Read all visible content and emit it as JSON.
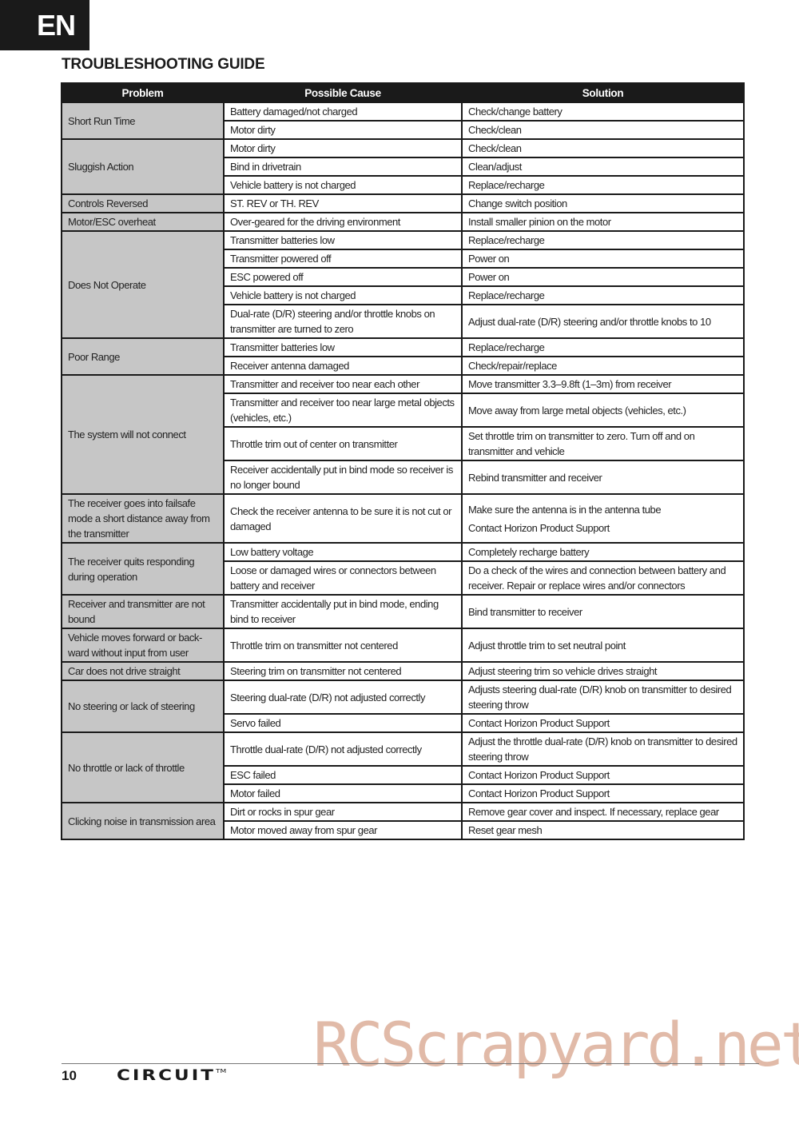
{
  "lang_tab": "EN",
  "title": "TROUBLESHOOTING GUIDE",
  "table": {
    "headers": [
      "Problem",
      "Possible Cause",
      "Solution"
    ],
    "groups": [
      {
        "problem": "Short Run Time",
        "rows": [
          {
            "cause": "Battery damaged/not charged",
            "solution": [
              "Check/change battery"
            ]
          },
          {
            "cause": "Motor dirty",
            "solution": [
              "Check/clean"
            ]
          }
        ]
      },
      {
        "problem": "Sluggish Action",
        "rows": [
          {
            "cause": "Motor dirty",
            "solution": [
              "Check/clean"
            ]
          },
          {
            "cause": "Bind in drivetrain",
            "solution": [
              "Clean/adjust"
            ]
          },
          {
            "cause": "Vehicle battery is not charged",
            "solution": [
              "Replace/recharge"
            ]
          }
        ]
      },
      {
        "problem": "Controls Reversed",
        "rows": [
          {
            "cause": "ST. REV or TH. REV",
            "solution": [
              "Change switch position"
            ]
          }
        ]
      },
      {
        "problem": "Motor/ESC overheat",
        "rows": [
          {
            "cause": "Over-geared for the driving environment",
            "solution": [
              "Install smaller pinion on the motor"
            ]
          }
        ]
      },
      {
        "problem": "Does Not Operate",
        "rows": [
          {
            "cause": "Transmitter batteries low",
            "solution": [
              "Replace/recharge"
            ]
          },
          {
            "cause": "Transmitter powered off",
            "solution": [
              "Power on"
            ]
          },
          {
            "cause": "ESC powered off",
            "solution": [
              "Power on"
            ]
          },
          {
            "cause": "Vehicle battery is not charged",
            "solution": [
              "Replace/recharge"
            ]
          },
          {
            "cause": "Dual-rate (D/R) steering and/or throttle knobs on transmitter are turned to zero",
            "solution": [
              "Adjust dual-rate (D/R) steering and/or throttle knobs to 10"
            ]
          }
        ]
      },
      {
        "problem": "Poor Range",
        "rows": [
          {
            "cause": "Transmitter batteries low",
            "solution": [
              "Replace/recharge"
            ]
          },
          {
            "cause": "Receiver antenna damaged",
            "solution": [
              "Check/repair/replace"
            ]
          }
        ]
      },
      {
        "problem": "The system will not connect",
        "rows": [
          {
            "cause": "Transmitter and receiver too near each other",
            "solution": [
              "Move transmitter 3.3–9.8ft (1–3m) from receiver"
            ]
          },
          {
            "cause": "Transmitter and receiver too near large metal objects (vehicles, etc.)",
            "solution": [
              "Move away from large metal objects (vehicles, etc.)"
            ]
          },
          {
            "cause": "Throttle trim out of center on transmitter",
            "solution": [
              "Set throttle trim on transmitter to zero. Turn off and on transmitter and vehicle"
            ]
          },
          {
            "cause": "Receiver accidentally put in bind mode so receiver is no longer bound",
            "solution": [
              "Rebind transmitter and receiver"
            ]
          }
        ]
      },
      {
        "problem": "The receiver goes into failsafe mode a short distance away from the transmitter",
        "rows": [
          {
            "cause": "Check the receiver antenna to be sure it is not cut or damaged",
            "solution": [
              "Make sure the antenna is in the antenna tube",
              "Contact Horizon Product Support"
            ]
          }
        ]
      },
      {
        "problem": "The receiver quits responding during operation",
        "rows": [
          {
            "cause": "Low battery voltage",
            "solution": [
              "Completely recharge battery"
            ]
          },
          {
            "cause": "Loose or damaged wires or connectors between battery and receiver",
            "solution": [
              "Do a check of the wires and connection between battery and receiver. Repair or replace wires and/or connectors"
            ]
          }
        ]
      },
      {
        "problem": "Receiver and transmitter are not bound",
        "rows": [
          {
            "cause": "Transmitter accidentally put in bind mode, ending bind to receiver",
            "solution": [
              "Bind transmitter to receiver"
            ]
          }
        ]
      },
      {
        "problem": "Vehicle moves forward or back-ward without input from user",
        "rows": [
          {
            "cause": "Throttle trim on transmitter not centered",
            "solution": [
              "Adjust throttle trim to set neutral point"
            ]
          }
        ]
      },
      {
        "problem": "Car does not drive straight",
        "rows": [
          {
            "cause": "Steering trim on transmitter not centered",
            "solution": [
              "Adjust steering trim so vehicle drives straight"
            ]
          }
        ]
      },
      {
        "problem": "No steering or lack of steering",
        "rows": [
          {
            "cause": "Steering dual-rate (D/R) not adjusted correctly",
            "solution": [
              "Adjusts steering dual-rate (D/R) knob on transmitter to desired steering throw"
            ]
          },
          {
            "cause": "Servo failed",
            "solution": [
              "Contact Horizon Product Support"
            ]
          }
        ]
      },
      {
        "problem": "No throttle or lack of throttle",
        "rows": [
          {
            "cause": "Throttle dual-rate (D/R) not adjusted correctly",
            "solution": [
              "Adjust the throttle dual-rate (D/R) knob on transmitter to desired steering throw"
            ]
          },
          {
            "cause": "ESC failed",
            "solution": [
              "Contact Horizon Product Support"
            ]
          },
          {
            "cause": "Motor failed",
            "solution": [
              "Contact Horizon Product Support"
            ]
          }
        ]
      },
      {
        "problem": "Clicking noise in transmission area",
        "rows": [
          {
            "cause": "Dirt or rocks in spur gear",
            "solution": [
              "Remove gear cover and inspect. If necessary, replace gear"
            ]
          },
          {
            "cause": "Motor moved away from spur gear",
            "solution": [
              "Reset gear mesh"
            ]
          }
        ]
      }
    ]
  },
  "footer": {
    "page_number": "10",
    "logo": "CIRCUIT",
    "trademark": "TM"
  },
  "watermark": "RCScrapyard.net"
}
